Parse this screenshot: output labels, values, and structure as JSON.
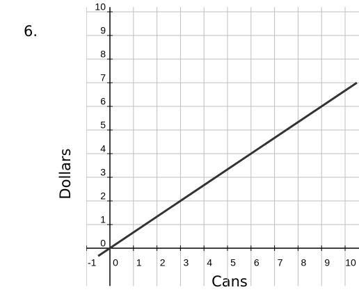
{
  "problem_number": "6.",
  "chart_data": {
    "type": "line",
    "x_label": "Cans",
    "y_label": "Dollars",
    "x": [
      -0.5,
      10.5
    ],
    "series": [
      {
        "color": "#333333",
        "values": [
          -0.33,
          7
        ]
      }
    ],
    "xlim": [
      -1,
      10.6
    ],
    "ylim": [
      -1.6,
      10.2
    ],
    "xticks": [
      -1,
      0,
      1,
      2,
      3,
      4,
      5,
      6,
      7,
      8,
      9,
      10
    ],
    "yticks": [
      0,
      1,
      2,
      3,
      4,
      5,
      6,
      7,
      8,
      9,
      10
    ],
    "grid": true
  }
}
